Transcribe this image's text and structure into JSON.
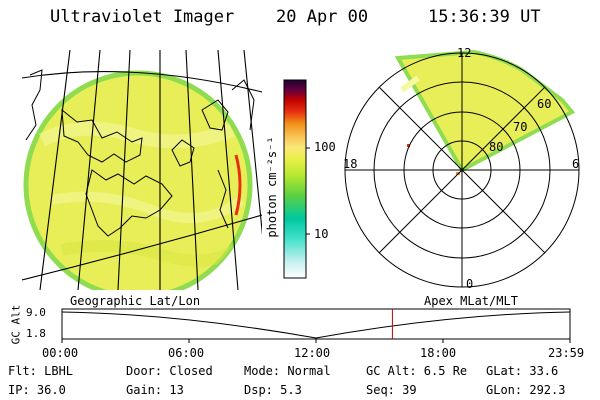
{
  "header": {
    "instrument": "Ultraviolet Imager",
    "date": "20 Apr 00",
    "time": "15:36:39 UT"
  },
  "colorbar": {
    "unit_label": "photon cm⁻²s⁻¹",
    "tick_100": "100",
    "tick_10": "10",
    "colors": [
      "#ffffff",
      "#c8f0f0",
      "#40e0c8",
      "#00c8a0",
      "#60d040",
      "#b8e830",
      "#e8f048",
      "#f8e878",
      "#f8c050",
      "#f09018",
      "#e83010",
      "#c00000",
      "#600040",
      "#200030"
    ]
  },
  "polar_plot": {
    "label_12": "12",
    "label_18": "18",
    "label_6": "6",
    "label_0": "0",
    "label_60": "60",
    "label_70": "70",
    "label_80": "80"
  },
  "captions": {
    "left": "Geographic Lat/Lon",
    "right": "Apex MLat/MLT"
  },
  "altitude_strip": {
    "axis_label": "GC Alt",
    "y_top": "9.0",
    "y_bottom": "1.8",
    "x_ticks": [
      "00:00",
      "06:00",
      "12:00",
      "18:00",
      "23:59"
    ],
    "current_marker_hour": 15.61,
    "marker_color": "#c00000"
  },
  "footer": {
    "row1": {
      "flt": "Flt: LBHL",
      "door": "Door: Closed",
      "mode": "Mode: Normal",
      "gcalt": "GC Alt: 6.5 Re",
      "glat": "GLat:  33.6"
    },
    "row2": {
      "ip": "IP: 36.0",
      "gain": "Gain: 13",
      "dsp": "Dsp:    5.3",
      "seq": "Seq: 39",
      "glon": "GLon: 292.3"
    }
  }
}
